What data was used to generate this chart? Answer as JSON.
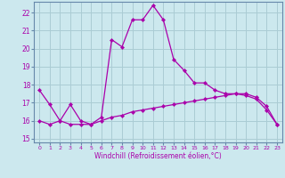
{
  "title": "",
  "xlabel": "Windchill (Refroidissement éolien,°C)",
  "ylabel": "",
  "bg_color": "#cce8ee",
  "grid_color": "#aaccd4",
  "line_color": "#aa00aa",
  "hours": [
    0,
    1,
    2,
    3,
    4,
    5,
    6,
    7,
    8,
    9,
    10,
    11,
    12,
    13,
    14,
    15,
    16,
    17,
    18,
    19,
    20,
    21,
    22,
    23
  ],
  "temp_line": [
    17.7,
    16.9,
    16.0,
    16.9,
    16.0,
    15.8,
    16.2,
    20.5,
    20.1,
    21.6,
    21.6,
    22.4,
    21.6,
    19.4,
    18.8,
    18.1,
    18.1,
    17.7,
    17.5,
    17.5,
    17.4,
    17.2,
    16.6,
    15.8
  ],
  "wind_line": [
    16.0,
    15.8,
    16.0,
    15.8,
    15.8,
    15.8,
    16.0,
    16.2,
    16.3,
    16.5,
    16.6,
    16.7,
    16.8,
    16.9,
    17.0,
    17.1,
    17.2,
    17.3,
    17.4,
    17.5,
    17.5,
    17.3,
    16.8,
    15.8
  ],
  "ylim": [
    14.8,
    22.6
  ],
  "xlim": [
    -0.5,
    23.5
  ],
  "yticks": [
    15,
    16,
    17,
    18,
    19,
    20,
    21,
    22
  ],
  "xticks": [
    0,
    1,
    2,
    3,
    4,
    5,
    6,
    7,
    8,
    9,
    10,
    11,
    12,
    13,
    14,
    15,
    16,
    17,
    18,
    19,
    20,
    21,
    22,
    23
  ],
  "xtick_labels": [
    "0",
    "1",
    "2",
    "3",
    "4",
    "5",
    "6",
    "7",
    "8",
    "9",
    "10",
    "11",
    "12",
    "13",
    "14",
    "15",
    "16",
    "17",
    "18",
    "19",
    "20",
    "21",
    "22",
    "23"
  ]
}
